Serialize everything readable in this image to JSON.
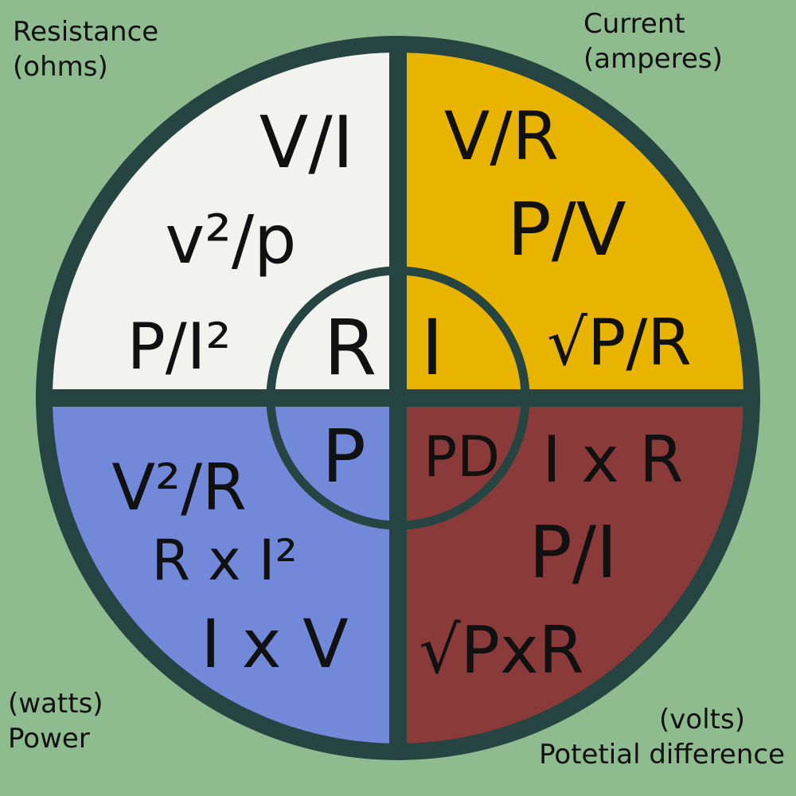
{
  "colors": {
    "background": "#8fbc8f",
    "ring": "#264542",
    "resistance": "#f2f2ef",
    "current": "#e8b400",
    "power": "#7289da",
    "potential": "#8b3a3a",
    "text": "#111111"
  },
  "quadrants": {
    "resistance": {
      "corner_label": "Resistance",
      "corner_unit": "(ohms)",
      "symbol": "R",
      "formulas": [
        "V/I",
        "v²/p",
        "P/I²"
      ]
    },
    "current": {
      "corner_label": "Current",
      "corner_unit": "(amperes)",
      "symbol": "I",
      "formulas": [
        "V/R",
        "P/V",
        "√P/R"
      ]
    },
    "power": {
      "corner_label": "Power",
      "corner_unit": "(watts)",
      "symbol": "P",
      "formulas": [
        "V²/R",
        "R x I²",
        "I x V"
      ]
    },
    "potential": {
      "corner_label": "Potetial difference",
      "corner_unit": "(volts)",
      "symbol": "PD",
      "formulas": [
        "I x R",
        "P/I",
        "√PxR"
      ]
    }
  }
}
